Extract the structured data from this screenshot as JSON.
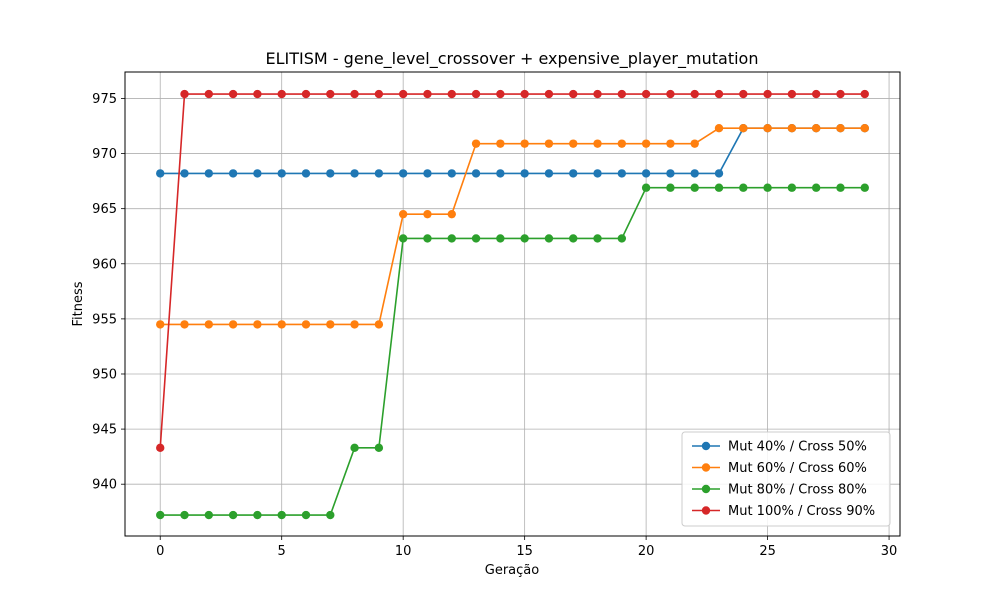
{
  "chart_data": {
    "type": "line",
    "title": "ELITISM - gene_level_crossover + expensive_player_mutation",
    "xlabel": "Geração",
    "ylabel": "Fitness",
    "xlim": [
      -1.45,
      30.45
    ],
    "ylim": [
      935.3,
      977.4
    ],
    "xticks": [
      0,
      5,
      10,
      15,
      20,
      25,
      30
    ],
    "yticks": [
      940,
      945,
      950,
      955,
      960,
      965,
      970,
      975
    ],
    "grid": true,
    "legend_position": "lower right",
    "x": [
      0,
      1,
      2,
      3,
      4,
      5,
      6,
      7,
      8,
      9,
      10,
      11,
      12,
      13,
      14,
      15,
      16,
      17,
      18,
      19,
      20,
      21,
      22,
      23,
      24,
      25,
      26,
      27,
      28,
      29
    ],
    "series": [
      {
        "name": "Mut 40% / Cross 50%",
        "color": "#1f77b4",
        "values": [
          968.2,
          968.2,
          968.2,
          968.2,
          968.2,
          968.2,
          968.2,
          968.2,
          968.2,
          968.2,
          968.2,
          968.2,
          968.2,
          968.2,
          968.2,
          968.2,
          968.2,
          968.2,
          968.2,
          968.2,
          968.2,
          968.2,
          968.2,
          968.2,
          972.3,
          972.3,
          972.3,
          972.3,
          972.3,
          972.3
        ]
      },
      {
        "name": "Mut 60% / Cross 60%",
        "color": "#ff7f0e",
        "values": [
          954.5,
          954.5,
          954.5,
          954.5,
          954.5,
          954.5,
          954.5,
          954.5,
          954.5,
          954.5,
          964.5,
          964.5,
          964.5,
          970.9,
          970.9,
          970.9,
          970.9,
          970.9,
          970.9,
          970.9,
          970.9,
          970.9,
          970.9,
          972.3,
          972.3,
          972.3,
          972.3,
          972.3,
          972.3,
          972.3
        ]
      },
      {
        "name": "Mut 80% / Cross 80%",
        "color": "#2ca02c",
        "values": [
          937.2,
          937.2,
          937.2,
          937.2,
          937.2,
          937.2,
          937.2,
          937.2,
          943.3,
          943.3,
          962.3,
          962.3,
          962.3,
          962.3,
          962.3,
          962.3,
          962.3,
          962.3,
          962.3,
          962.3,
          966.9,
          966.9,
          966.9,
          966.9,
          966.9,
          966.9,
          966.9,
          966.9,
          966.9,
          966.9
        ]
      },
      {
        "name": "Mut 100% / Cross 90%",
        "color": "#d62728",
        "values": [
          943.3,
          975.4,
          975.4,
          975.4,
          975.4,
          975.4,
          975.4,
          975.4,
          975.4,
          975.4,
          975.4,
          975.4,
          975.4,
          975.4,
          975.4,
          975.4,
          975.4,
          975.4,
          975.4,
          975.4,
          975.4,
          975.4,
          975.4,
          975.4,
          975.4,
          975.4,
          975.4,
          975.4,
          975.4,
          975.4
        ]
      }
    ]
  }
}
